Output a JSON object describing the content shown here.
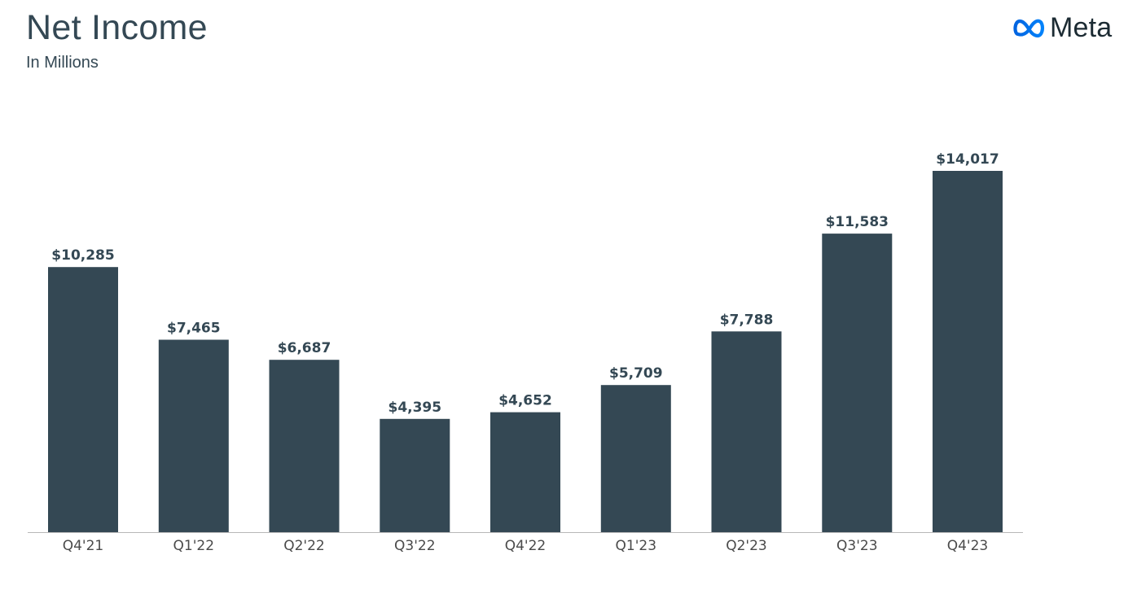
{
  "header": {
    "title": "Net Income",
    "subtitle": "In Millions"
  },
  "brand": {
    "logo_text": "Meta",
    "logo_icon": "meta-infinity-icon",
    "logo_color": "#0668E1"
  },
  "colors": {
    "bar": "#344854",
    "text": "#344854"
  },
  "chart_data": {
    "type": "bar",
    "title": "Net Income",
    "subtitle": "In Millions",
    "categories": [
      "Q4'21",
      "Q1'22",
      "Q2'22",
      "Q3'22",
      "Q4'22",
      "Q1'23",
      "Q2'23",
      "Q3'23",
      "Q4'23"
    ],
    "values": [
      10285,
      7465,
      6687,
      4395,
      4652,
      5709,
      7788,
      11583,
      14017
    ],
    "data_labels": [
      "$10,285",
      "$7,465",
      "$6,687",
      "$4,395",
      "$4,652",
      "$5,709",
      "$7,788",
      "$11,583",
      "$14,017"
    ],
    "ylim": [
      0,
      14017
    ],
    "grid": false,
    "legend": "none"
  }
}
